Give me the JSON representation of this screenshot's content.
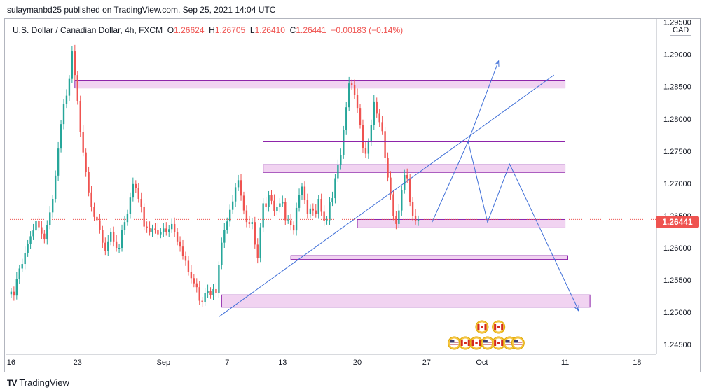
{
  "header": {
    "published": "sulaymanbd25 published on TradingView.com, Sep 25, 2021 14:04 UTC"
  },
  "legend": {
    "symbol": "U.S. Dollar / Canadian Dollar, 4h, FXCM",
    "o_label": "O",
    "o": "1.26624",
    "h_label": "H",
    "h": "1.26705",
    "l_label": "L",
    "l": "1.26410",
    "c_label": "C",
    "c": "1.26441",
    "change": "−0.00183 (−0.14%)"
  },
  "currency_label": "CAD",
  "last_price": "1.26441",
  "footer": {
    "brand": "TradingView",
    "logo_glyph": "TV"
  },
  "colors": {
    "up": "#26a69a",
    "down": "#ef5350",
    "zone_fill": "#f1d3f1",
    "zone_stroke": "#8e24aa",
    "trend": "#3f6fd8",
    "price_tag": "#ef5350"
  },
  "chart_data": {
    "type": "candlestick",
    "symbol": "USDCAD",
    "timeframe": "4h",
    "ylim": [
      1.2435,
      1.2955
    ],
    "y_ticks": [
      "1.29500",
      "1.29000",
      "1.28500",
      "1.28000",
      "1.27500",
      "1.27000",
      "1.26500",
      "1.26000",
      "1.25500",
      "1.25000",
      "1.24500"
    ],
    "x_ticks": [
      "16",
      "23",
      "Sep",
      "7",
      "13",
      "20",
      "27",
      "Oct",
      "11",
      "18"
    ],
    "x_ticks_index": [
      0,
      24,
      55,
      78,
      98,
      125,
      150,
      170,
      200,
      226
    ],
    "x_index_range": [
      -2,
      233
    ],
    "last_close": 1.26441,
    "closes": [
      1.2532,
      1.2526,
      1.2552,
      1.2568,
      1.2575,
      1.2592,
      1.2606,
      1.2618,
      1.2627,
      1.2642,
      1.2632,
      1.2622,
      1.2613,
      1.2635,
      1.2655,
      1.2676,
      1.2712,
      1.2754,
      1.2792,
      1.2823,
      1.2836,
      1.2862,
      1.2905,
      1.2868,
      1.2828,
      1.278,
      1.2748,
      1.2718,
      1.2686,
      1.2664,
      1.2648,
      1.2643,
      1.2628,
      1.2608,
      1.2595,
      1.261,
      1.2625,
      1.261,
      1.26,
      1.26,
      1.2628,
      1.264,
      1.2653,
      1.2678,
      1.2699,
      1.2693,
      1.2676,
      1.2663,
      1.2633,
      1.2631,
      1.2625,
      1.263,
      1.2628,
      1.2621,
      1.2625,
      1.263,
      1.2625,
      1.2629,
      1.2637,
      1.2625,
      1.261,
      1.2602,
      1.2588,
      1.258,
      1.2563,
      1.2553,
      1.2545,
      1.2539,
      1.2518,
      1.2516,
      1.253,
      1.2533,
      1.2527,
      1.2536,
      1.253,
      1.2573,
      1.2608,
      1.2628,
      1.2641,
      1.2659,
      1.2672,
      1.2694,
      1.2705,
      1.2681,
      1.2658,
      1.264,
      1.2637,
      1.264,
      1.2605,
      1.2584,
      1.2632,
      1.2669,
      1.2664,
      1.2682,
      1.2673,
      1.2657,
      1.2663,
      1.2669,
      1.2671,
      1.2643,
      1.2643,
      1.2635,
      1.2627,
      1.2662,
      1.2682,
      1.2695,
      1.2674,
      1.2653,
      1.2661,
      1.2658,
      1.2653,
      1.2676,
      1.2656,
      1.2642,
      1.2643,
      1.2671,
      1.2677,
      1.2708,
      1.2729,
      1.2744,
      1.2783,
      1.2818,
      1.2855,
      1.2853,
      1.2837,
      1.2817,
      1.2791,
      1.2755,
      1.2746,
      1.2764,
      1.2791,
      1.2827,
      1.2808,
      1.2795,
      1.2781,
      1.274,
      1.2709,
      1.2683,
      1.2649,
      1.2637,
      1.2658,
      1.269,
      1.2713,
      1.2708,
      1.2671,
      1.265,
      1.2642,
      1.26441
    ],
    "zones": [
      {
        "from_index": 23,
        "to_index": 200,
        "top": 1.286,
        "bottom": 1.2848
      },
      {
        "from_index": 91,
        "to_index": 200,
        "top": 1.2729,
        "bottom": 1.2717
      },
      {
        "from_index": 125,
        "to_index": 200,
        "top": 1.2644,
        "bottom": 1.2631
      },
      {
        "from_index": 101,
        "to_index": 201,
        "top": 1.2588,
        "bottom": 1.2582
      },
      {
        "from_index": 76,
        "to_index": 209,
        "top": 1.2527,
        "bottom": 1.2508
      }
    ],
    "resistance_line": {
      "from_index": 91,
      "to_index": 200,
      "value": 1.2765
    },
    "trend_line": {
      "from": [
        75,
        1.2493
      ],
      "to": [
        196,
        1.2868
      ]
    },
    "projection_path": [
      [
        152,
        1.264
      ],
      [
        165,
        1.2765
      ],
      [
        172,
        1.264
      ],
      [
        180,
        1.273
      ],
      [
        205,
        1.2502
      ]
    ],
    "projection_up": [
      [
        165,
        1.2765
      ],
      [
        176,
        1.289
      ]
    ]
  },
  "events": [
    {
      "flag": "ca",
      "label": "CAD"
    },
    {
      "flag": "ca",
      "label": "CAD"
    },
    {
      "flag": "us",
      "label": "USD"
    },
    {
      "flag": "ca",
      "label": "CAD"
    },
    {
      "flag": "ca",
      "label": "CAD"
    },
    {
      "flag": "us",
      "label": "USD"
    },
    {
      "flag": "ca",
      "label": "CAD"
    },
    {
      "flag": "us",
      "label": "USD"
    },
    {
      "flag": "us",
      "label": "USD"
    }
  ]
}
